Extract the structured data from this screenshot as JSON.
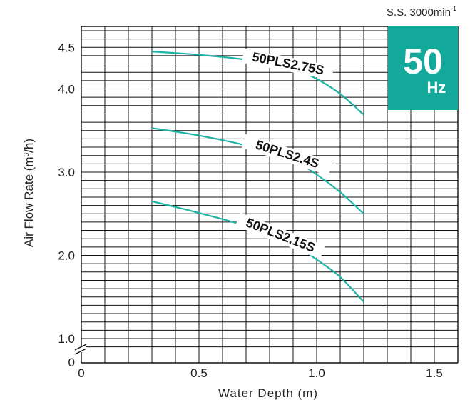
{
  "chart_data": {
    "type": "line",
    "xlabel": "Water Depth (m)",
    "ylabel_main": "Air Flow Rate (m",
    "ylabel_sup": "3",
    "ylabel_end": "/h)",
    "speed_label": "S.S. 3000min",
    "speed_sup": "-1",
    "badge": {
      "number": "50",
      "unit": "Hz",
      "color": "#12A89A"
    },
    "line_color": "#1FB3A6",
    "xlim": [
      0,
      1.6
    ],
    "x_ticks": [
      0,
      0.5,
      1.0,
      1.5
    ],
    "x_tick_labels": [
      "0",
      "0.5",
      "1.0",
      "1.5"
    ],
    "y_ticks": [
      1.0,
      2.0,
      3.0,
      4.0,
      4.5
    ],
    "y_tick_labels": [
      "1.0",
      "2.0",
      "3.0",
      "4.0",
      "4.5"
    ],
    "y_zero_label": "0",
    "grid": true,
    "series": [
      {
        "name": "50PLS2.75S",
        "x": [
          0.3,
          0.5,
          0.7,
          0.9,
          1.0,
          1.1,
          1.2
        ],
        "y": [
          4.45,
          4.41,
          4.35,
          4.24,
          4.12,
          3.94,
          3.69
        ]
      },
      {
        "name": "50PLS2.4S",
        "x": [
          0.3,
          0.5,
          0.7,
          0.9,
          1.0,
          1.1,
          1.2
        ],
        "y": [
          3.53,
          3.44,
          3.32,
          3.14,
          2.97,
          2.76,
          2.5
        ]
      },
      {
        "name": "50PLS2.15S",
        "x": [
          0.3,
          0.5,
          0.7,
          0.9,
          1.0,
          1.1,
          1.2
        ],
        "y": [
          2.65,
          2.51,
          2.35,
          2.13,
          1.95,
          1.74,
          1.44
        ]
      }
    ]
  }
}
